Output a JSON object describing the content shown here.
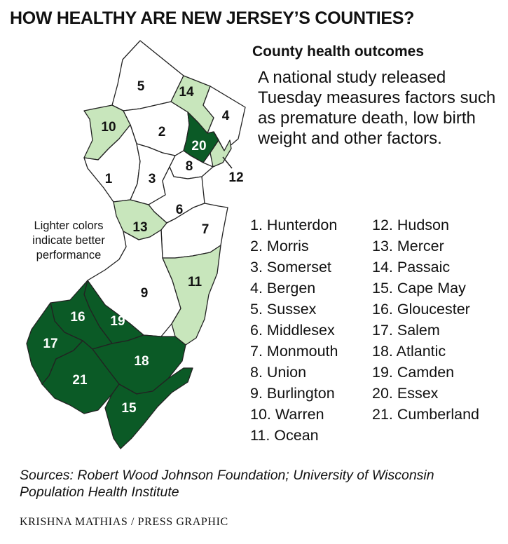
{
  "title": "HOW HEALTHY ARE NEW JERSEY’S COUNTIES?",
  "subtitle": "County health outcomes",
  "description": "A national study released Tuesday measures factors such as premature death, low birth weight and other factors.",
  "legend_note": "Lighter colors indicate better performance",
  "colors": {
    "white": "#ffffff",
    "light": "#c8e6bc",
    "dark": "#0b5a26",
    "stroke": "#222222"
  },
  "counties": [
    {
      "num": "1",
      "name": "1. Hunterdon",
      "shade": "white"
    },
    {
      "num": "2",
      "name": "2. Morris",
      "shade": "white"
    },
    {
      "num": "3",
      "name": "3. Somerset",
      "shade": "white"
    },
    {
      "num": "4",
      "name": "4. Bergen",
      "shade": "white"
    },
    {
      "num": "5",
      "name": "5. Sussex",
      "shade": "white"
    },
    {
      "num": "6",
      "name": "6. Middlesex",
      "shade": "white"
    },
    {
      "num": "7",
      "name": "7. Monmouth",
      "shade": "white"
    },
    {
      "num": "8",
      "name": "8. Union",
      "shade": "white"
    },
    {
      "num": "9",
      "name": "9. Burlington",
      "shade": "white"
    },
    {
      "num": "10",
      "name": "10. Warren",
      "shade": "light"
    },
    {
      "num": "11",
      "name": "11. Ocean",
      "shade": "light"
    },
    {
      "num": "12",
      "name": "12. Hudson",
      "shade": "light"
    },
    {
      "num": "13",
      "name": "13. Mercer",
      "shade": "light"
    },
    {
      "num": "14",
      "name": "14. Passaic",
      "shade": "light"
    },
    {
      "num": "15",
      "name": "15. Cape May",
      "shade": "dark"
    },
    {
      "num": "16",
      "name": "16. Gloucester",
      "shade": "dark"
    },
    {
      "num": "17",
      "name": "17. Salem",
      "shade": "dark"
    },
    {
      "num": "18",
      "name": "18. Atlantic",
      "shade": "dark"
    },
    {
      "num": "19",
      "name": "19. Camden",
      "shade": "dark"
    },
    {
      "num": "20",
      "name": "20. Essex",
      "shade": "dark"
    },
    {
      "num": "21",
      "name": "21. Cumberland",
      "shade": "dark"
    }
  ],
  "sources": "Sources: Robert Wood Johnson Foundation; University of Wisconsin Population Health Institute",
  "credit": "KRISHNA MATHIAS / PRESS GRAPHIC"
}
